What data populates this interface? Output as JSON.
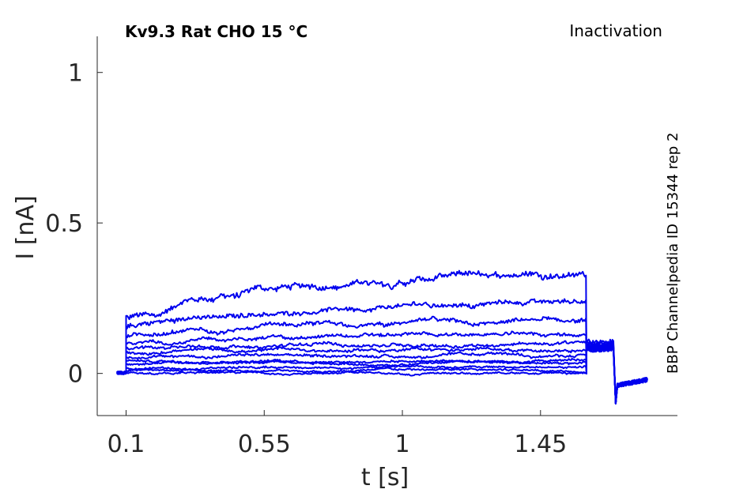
{
  "chart_data": {
    "type": "line",
    "title": "Kv9.3  Rat  CHO  15 °C",
    "subtitle": "Inactivation",
    "side_note": "BBP Channelpedia ID 15344 rep 2",
    "xlabel": "t [s]",
    "ylabel": "I [nA]",
    "xlim": [
      0.006,
      1.896
    ],
    "ylim": [
      -0.14,
      1.12
    ],
    "x_ticks": [
      0.1,
      0.55,
      1,
      1.45
    ],
    "x_tick_labels": [
      "0.1",
      "0.55",
      "1",
      "1.45"
    ],
    "y_ticks": [
      0,
      0.5,
      1
    ],
    "y_tick_labels": [
      "0",
      "0.5",
      "1"
    ],
    "grid": false,
    "legend": "none",
    "line_color": "#0000ee",
    "pulse_start": 0.1,
    "pulse_end": 1.6,
    "trace_start": 0.07,
    "trace_end": 1.8,
    "series": [
      {
        "pulse_start_value": 0.185,
        "pulse_end_value": 0.34,
        "tail_value": 0.105
      },
      {
        "pulse_start_value": 0.15,
        "pulse_end_value": 0.245,
        "tail_value": 0.1
      },
      {
        "pulse_start_value": 0.12,
        "pulse_end_value": 0.175,
        "tail_value": 0.095
      },
      {
        "pulse_start_value": 0.1,
        "pulse_end_value": 0.13,
        "tail_value": 0.09
      },
      {
        "pulse_start_value": 0.085,
        "pulse_end_value": 0.1,
        "tail_value": 0.088
      },
      {
        "pulse_start_value": 0.07,
        "pulse_end_value": 0.08,
        "tail_value": 0.086
      },
      {
        "pulse_start_value": 0.055,
        "pulse_end_value": 0.06,
        "tail_value": 0.085
      },
      {
        "pulse_start_value": 0.042,
        "pulse_end_value": 0.045,
        "tail_value": 0.084
      },
      {
        "pulse_start_value": 0.03,
        "pulse_end_value": 0.032,
        "tail_value": 0.083
      },
      {
        "pulse_start_value": 0.018,
        "pulse_end_value": 0.02,
        "tail_value": 0.082
      },
      {
        "pulse_start_value": 0.008,
        "pulse_end_value": 0.01,
        "tail_value": 0.081
      },
      {
        "pulse_start_value": 0.0,
        "pulse_end_value": 0.0,
        "tail_value": 0.08
      }
    ]
  }
}
